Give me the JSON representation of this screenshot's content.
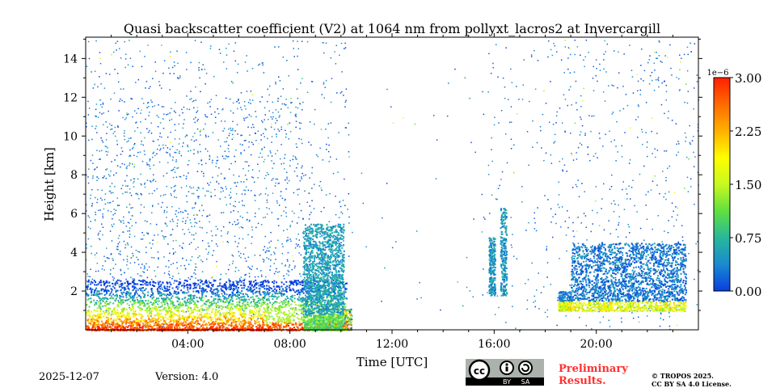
{
  "chart_data": {
    "type": "heatmap",
    "title": "Quasi backscatter coefficient (V2) at 1064 nm from pollyxt_lacros2 at Invercargill",
    "xlabel": "Time [UTC]",
    "ylabel": "Height [km]",
    "xlim_hours": [
      0,
      24
    ],
    "ylim_km": [
      0,
      15.1
    ],
    "xticks": [
      {
        "v": 4,
        "label": "04:00"
      },
      {
        "v": 8,
        "label": "08:00"
      },
      {
        "v": 12,
        "label": "12:00"
      },
      {
        "v": 16,
        "label": "16:00"
      },
      {
        "v": 20,
        "label": "20:00"
      }
    ],
    "yticks": [
      {
        "v": 2,
        "label": "2"
      },
      {
        "v": 4,
        "label": "4"
      },
      {
        "v": 6,
        "label": "6"
      },
      {
        "v": 8,
        "label": "8"
      },
      {
        "v": 10,
        "label": "10"
      },
      {
        "v": 12,
        "label": "12"
      },
      {
        "v": 14,
        "label": "14"
      }
    ],
    "colorbar": {
      "range": [
        0,
        3.0
      ],
      "scale_label": "1e−6",
      "ticks": [
        {
          "v": 0,
          "label": "0.00"
        },
        {
          "v": 0.75,
          "label": "0.75"
        },
        {
          "v": 1.5,
          "label": "1.50"
        },
        {
          "v": 2.25,
          "label": "2.25"
        },
        {
          "v": 3.0,
          "label": "3.00"
        }
      ],
      "colors": [
        "#0a3ee0",
        "#1a8ad0",
        "#28b89a",
        "#60e040",
        "#c8f820",
        "#ffff00",
        "#ffb000",
        "#ff6a00",
        "#ff2000"
      ]
    },
    "features": [
      {
        "name": "boundary-layer",
        "t": [
          0,
          10.2
        ],
        "h": [
          0,
          2.5
        ],
        "value_max": 3.0
      },
      {
        "name": "aerosol-plume",
        "t": [
          8.5,
          10.1
        ],
        "h": [
          0,
          5.5
        ],
        "value_max": 1.0
      },
      {
        "name": "cloud-columns",
        "t": [
          15.8,
          16.5
        ],
        "h": [
          1.5,
          7.5
        ],
        "value_max": 0.8
      },
      {
        "name": "evening-layer",
        "t": [
          18.5,
          23.5
        ],
        "h": [
          1,
          4.5
        ],
        "value_max": 2.2
      }
    ]
  },
  "footer": {
    "date": "2025-12-07",
    "version": "Version: 4.0",
    "license_badge": [
      "cc",
      "BY",
      "SA"
    ],
    "preliminary": "Preliminary Results.",
    "copyright": "© TROPOS 2025.",
    "license": "CC BY SA 4.0 License."
  }
}
